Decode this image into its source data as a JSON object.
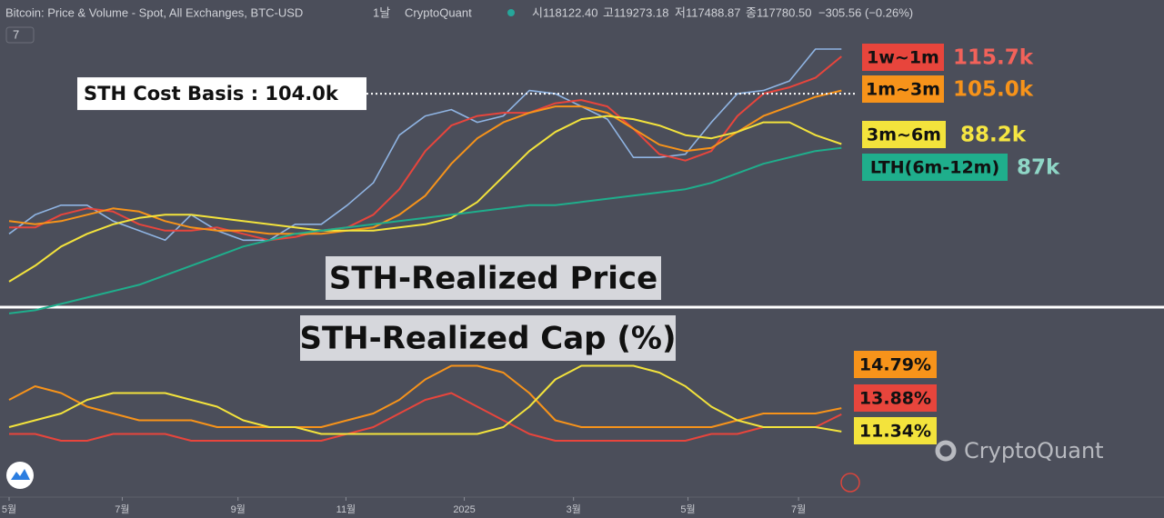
{
  "header": {
    "title": "Bitcoin: Price & Volume - Spot, All Exchanges, BTC-USD",
    "interval": "1날",
    "source": "CryptoQuant",
    "open": "시118122.40",
    "high": "고119273.18",
    "low": "저117488.87",
    "close": "종117780.50",
    "change": "−305.56 (−0.26%)",
    "indicator": "7"
  },
  "watermark": "CryptoQuant",
  "chart_data": [
    {
      "type": "line",
      "title": "STH-Realized Price",
      "cost_basis": {
        "label": "STH Cost Basis : 104.0k",
        "value": 104.0
      },
      "x": [
        0,
        2,
        4,
        6,
        8,
        10,
        12,
        14,
        16,
        18,
        20,
        22,
        24,
        26,
        28,
        30,
        32,
        34,
        36,
        38,
        40,
        42,
        44,
        46,
        48,
        50,
        52,
        54,
        56,
        58,
        60,
        62,
        64
      ],
      "xlim": [
        -0.7,
        88.8
      ],
      "ylim": [
        25,
        122
      ],
      "price": {
        "color": "#8fb4e3",
        "values": [
          60,
          66,
          69,
          69,
          64,
          61,
          58,
          66,
          61,
          58,
          58,
          63,
          63,
          69,
          76,
          91,
          97,
          99,
          95,
          97,
          105,
          104,
          100,
          96,
          84,
          84,
          85,
          95,
          104,
          105,
          108,
          118,
          118
        ]
      },
      "series": [
        {
          "name": "1w~1m",
          "color": "#e8453c",
          "label": "115.7k",
          "label_color": "#f2625a",
          "values": [
            62,
            62,
            66,
            68,
            67,
            63,
            61,
            61,
            62,
            60,
            58,
            59,
            61,
            62,
            66,
            74,
            86,
            94,
            97,
            98,
            98,
            101,
            102,
            100,
            93,
            85,
            83,
            86,
            97,
            104,
            106,
            109,
            115.7
          ]
        },
        {
          "name": "1m~3m",
          "color": "#f7931a",
          "label": "105.0k",
          "label_color": "#f7931a",
          "values": [
            64,
            63,
            64,
            66,
            68,
            67,
            64,
            62,
            61,
            61,
            60,
            60,
            60,
            61,
            62,
            66,
            72,
            82,
            90,
            95,
            98,
            100,
            100,
            98,
            93,
            88,
            86,
            87,
            92,
            97,
            100,
            103,
            105.0
          ]
        },
        {
          "name": "3m~6m",
          "color": "#f3e33c",
          "label": "88.2k",
          "label_color": "#f5e642",
          "values": [
            45,
            50,
            56,
            60,
            63,
            65,
            66,
            66,
            65,
            64,
            63,
            62,
            61,
            61,
            61,
            62,
            63,
            65,
            70,
            78,
            86,
            92,
            96,
            97,
            96,
            94,
            91,
            90,
            92,
            95,
            95,
            91,
            88.2
          ]
        },
        {
          "name": "LTH(6m-12m)",
          "color": "#1fae8c",
          "label": "87k",
          "label_color": "#8fd6c6",
          "values": [
            35,
            36,
            38,
            40,
            42,
            44,
            47,
            50,
            53,
            56,
            58,
            60,
            61,
            62,
            63,
            64,
            65,
            66,
            67,
            68,
            69,
            69,
            70,
            71,
            72,
            73,
            74,
            76,
            79,
            82,
            84,
            86,
            87
          ]
        }
      ]
    },
    {
      "type": "line",
      "title": "STH-Realized Cap (%)",
      "x": [
        0,
        2,
        4,
        6,
        8,
        10,
        12,
        14,
        16,
        18,
        20,
        22,
        24,
        26,
        28,
        30,
        32,
        34,
        36,
        38,
        40,
        42,
        44,
        46,
        48,
        50,
        52,
        54,
        56,
        58,
        60,
        62,
        64
      ],
      "xlim": [
        -0.7,
        88.8
      ],
      "xticks": [
        {
          "value": 0,
          "label": "5월"
        },
        {
          "value": 8.7,
          "label": "7월"
        },
        {
          "value": 17.6,
          "label": "9월"
        },
        {
          "value": 25.9,
          "label": "11월"
        },
        {
          "value": 35,
          "label": "2025"
        },
        {
          "value": 43.4,
          "label": "3월"
        },
        {
          "value": 52.2,
          "label": "5월"
        },
        {
          "value": 60.7,
          "label": "7월"
        }
      ],
      "ylim": [
        3,
        29
      ],
      "series": [
        {
          "color": "#f7931a",
          "label": "14.79%",
          "values": [
            16,
            18,
            17,
            15,
            14,
            13,
            13,
            13,
            12,
            12,
            12,
            12,
            12,
            13,
            14,
            16,
            19,
            21,
            21,
            20,
            17,
            13,
            12,
            12,
            12,
            12,
            12,
            12,
            13,
            14,
            14,
            14,
            14.79
          ]
        },
        {
          "color": "#e8453c",
          "label": "13.88%",
          "values": [
            11,
            11,
            10,
            10,
            11,
            11,
            11,
            10,
            10,
            10,
            10,
            10,
            10,
            11,
            12,
            14,
            16,
            17,
            15,
            13,
            11,
            10,
            10,
            10,
            10,
            10,
            10,
            11,
            11,
            12,
            12,
            12,
            13.88
          ]
        },
        {
          "color": "#f3e33c",
          "label": "11.34%",
          "values": [
            12,
            13,
            14,
            16,
            17,
            17,
            17,
            16,
            15,
            13,
            12,
            12,
            11,
            11,
            11,
            11,
            11,
            11,
            11,
            12,
            15,
            19,
            21,
            21,
            21,
            20,
            18,
            15,
            13,
            12,
            12,
            12,
            11.34
          ]
        }
      ]
    }
  ]
}
